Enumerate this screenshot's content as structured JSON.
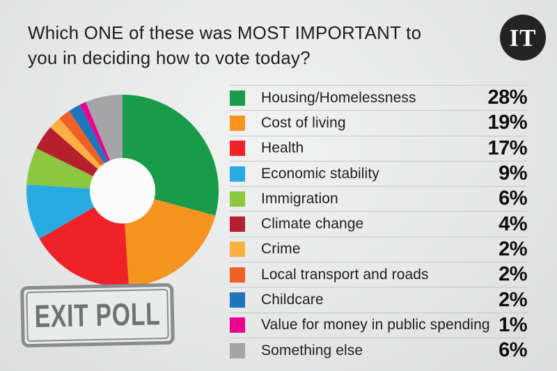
{
  "title": {
    "line1": "Which ONE of these was MOST IMPORTANT to",
    "line2": "you in deciding how to vote today?"
  },
  "logo": {
    "text": "IT",
    "background": "#232323",
    "text_color": "#fbfbfb"
  },
  "stamp": {
    "label": "EXIT POLL",
    "color": "#6f7174"
  },
  "chart_data": {
    "type": "pie",
    "subtype": "donut",
    "title": "Which ONE of these was MOST IMPORTANT to you in deciding how to vote today?",
    "unit": "%",
    "direction": "clockwise",
    "start_angle_deg": 0,
    "legend_position": "right",
    "donut_hole_color": "#fcfcfc",
    "categories": [
      "Housing/Homelessness",
      "Cost of living",
      "Health",
      "Economic stability",
      "Immigration",
      "Climate change",
      "Crime",
      "Local transport and roads",
      "Childcare",
      "Value for money in public spending",
      "Something else"
    ],
    "values": [
      28,
      19,
      17,
      9,
      6,
      4,
      2,
      2,
      2,
      1,
      6
    ],
    "value_labels": [
      "28%",
      "19%",
      "17%",
      "9%",
      "6%",
      "4%",
      "2%",
      "2%",
      "2%",
      "1%",
      "6%"
    ],
    "colors": [
      "#189c4a",
      "#f5941f",
      "#ee2228",
      "#29abe2",
      "#8dc63f",
      "#b51f2e",
      "#fbb042",
      "#f15f29",
      "#1d75bc",
      "#ec008c",
      "#a5a5a8"
    ]
  }
}
